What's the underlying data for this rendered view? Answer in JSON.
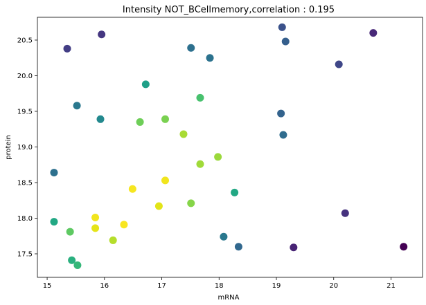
{
  "chart_data": {
    "type": "scatter",
    "title": "Intensity NOT_BCellmemory,correlation : 0.195",
    "xlabel": "mRNA",
    "ylabel": "protein",
    "xlim": [
      14.83,
      21.55
    ],
    "ylim": [
      17.17,
      20.82
    ],
    "xticks": [
      15,
      16,
      17,
      18,
      19,
      20,
      21
    ],
    "yticks": [
      17.5,
      18.0,
      18.5,
      19.0,
      19.5,
      20.0,
      20.5
    ],
    "xtick_labels": [
      "15",
      "16",
      "17",
      "18",
      "19",
      "20",
      "21"
    ],
    "ytick_labels": [
      "17.5",
      "18.0",
      "18.5",
      "19.0",
      "19.5",
      "20.0",
      "20.5"
    ],
    "grid": false,
    "colormap": "viridis",
    "points": [
      {
        "x": 15.35,
        "y": 20.38,
        "color": "#433e85"
      },
      {
        "x": 15.95,
        "y": 20.58,
        "color": "#453781"
      },
      {
        "x": 15.52,
        "y": 19.58,
        "color": "#2a788e"
      },
      {
        "x": 15.93,
        "y": 19.39,
        "color": "#23898e"
      },
      {
        "x": 15.12,
        "y": 18.64,
        "color": "#2d708e"
      },
      {
        "x": 15.12,
        "y": 17.95,
        "color": "#22a884"
      },
      {
        "x": 15.4,
        "y": 17.81,
        "color": "#5ec962"
      },
      {
        "x": 15.43,
        "y": 17.41,
        "color": "#2ab07f"
      },
      {
        "x": 15.53,
        "y": 17.34,
        "color": "#35b779"
      },
      {
        "x": 15.84,
        "y": 18.01,
        "color": "#f1e51d"
      },
      {
        "x": 15.84,
        "y": 17.86,
        "color": "#e5e419"
      },
      {
        "x": 16.15,
        "y": 17.69,
        "color": "#b5de2b"
      },
      {
        "x": 16.34,
        "y": 17.91,
        "color": "#f8e621"
      },
      {
        "x": 16.49,
        "y": 18.41,
        "color": "#f6e620"
      },
      {
        "x": 16.62,
        "y": 19.35,
        "color": "#6ece58"
      },
      {
        "x": 16.72,
        "y": 19.88,
        "color": "#1fa088"
      },
      {
        "x": 16.95,
        "y": 18.17,
        "color": "#e2e418"
      },
      {
        "x": 17.06,
        "y": 18.53,
        "color": "#f1e51d"
      },
      {
        "x": 17.06,
        "y": 19.39,
        "color": "#7ad151"
      },
      {
        "x": 17.38,
        "y": 19.18,
        "color": "#a8db34"
      },
      {
        "x": 17.51,
        "y": 20.39,
        "color": "#2d708e"
      },
      {
        "x": 17.51,
        "y": 18.21,
        "color": "#86d549"
      },
      {
        "x": 17.67,
        "y": 19.69,
        "color": "#48c16e"
      },
      {
        "x": 17.67,
        "y": 18.76,
        "color": "#a0da39"
      },
      {
        "x": 17.84,
        "y": 20.25,
        "color": "#2c728e"
      },
      {
        "x": 17.98,
        "y": 18.86,
        "color": "#9bd93c"
      },
      {
        "x": 18.08,
        "y": 17.74,
        "color": "#2a788e"
      },
      {
        "x": 18.27,
        "y": 18.36,
        "color": "#22a884"
      },
      {
        "x": 18.34,
        "y": 17.6,
        "color": "#31688e"
      },
      {
        "x": 19.08,
        "y": 19.47,
        "color": "#33638d"
      },
      {
        "x": 19.1,
        "y": 20.68,
        "color": "#3b528b"
      },
      {
        "x": 19.12,
        "y": 19.17,
        "color": "#2f6c8e"
      },
      {
        "x": 19.16,
        "y": 20.48,
        "color": "#355f8d"
      },
      {
        "x": 19.3,
        "y": 17.59,
        "color": "#482475"
      },
      {
        "x": 20.09,
        "y": 20.16,
        "color": "#3f4788"
      },
      {
        "x": 20.2,
        "y": 18.07,
        "color": "#46327e"
      },
      {
        "x": 20.69,
        "y": 20.6,
        "color": "#482878"
      },
      {
        "x": 21.22,
        "y": 17.6,
        "color": "#440154"
      }
    ]
  }
}
